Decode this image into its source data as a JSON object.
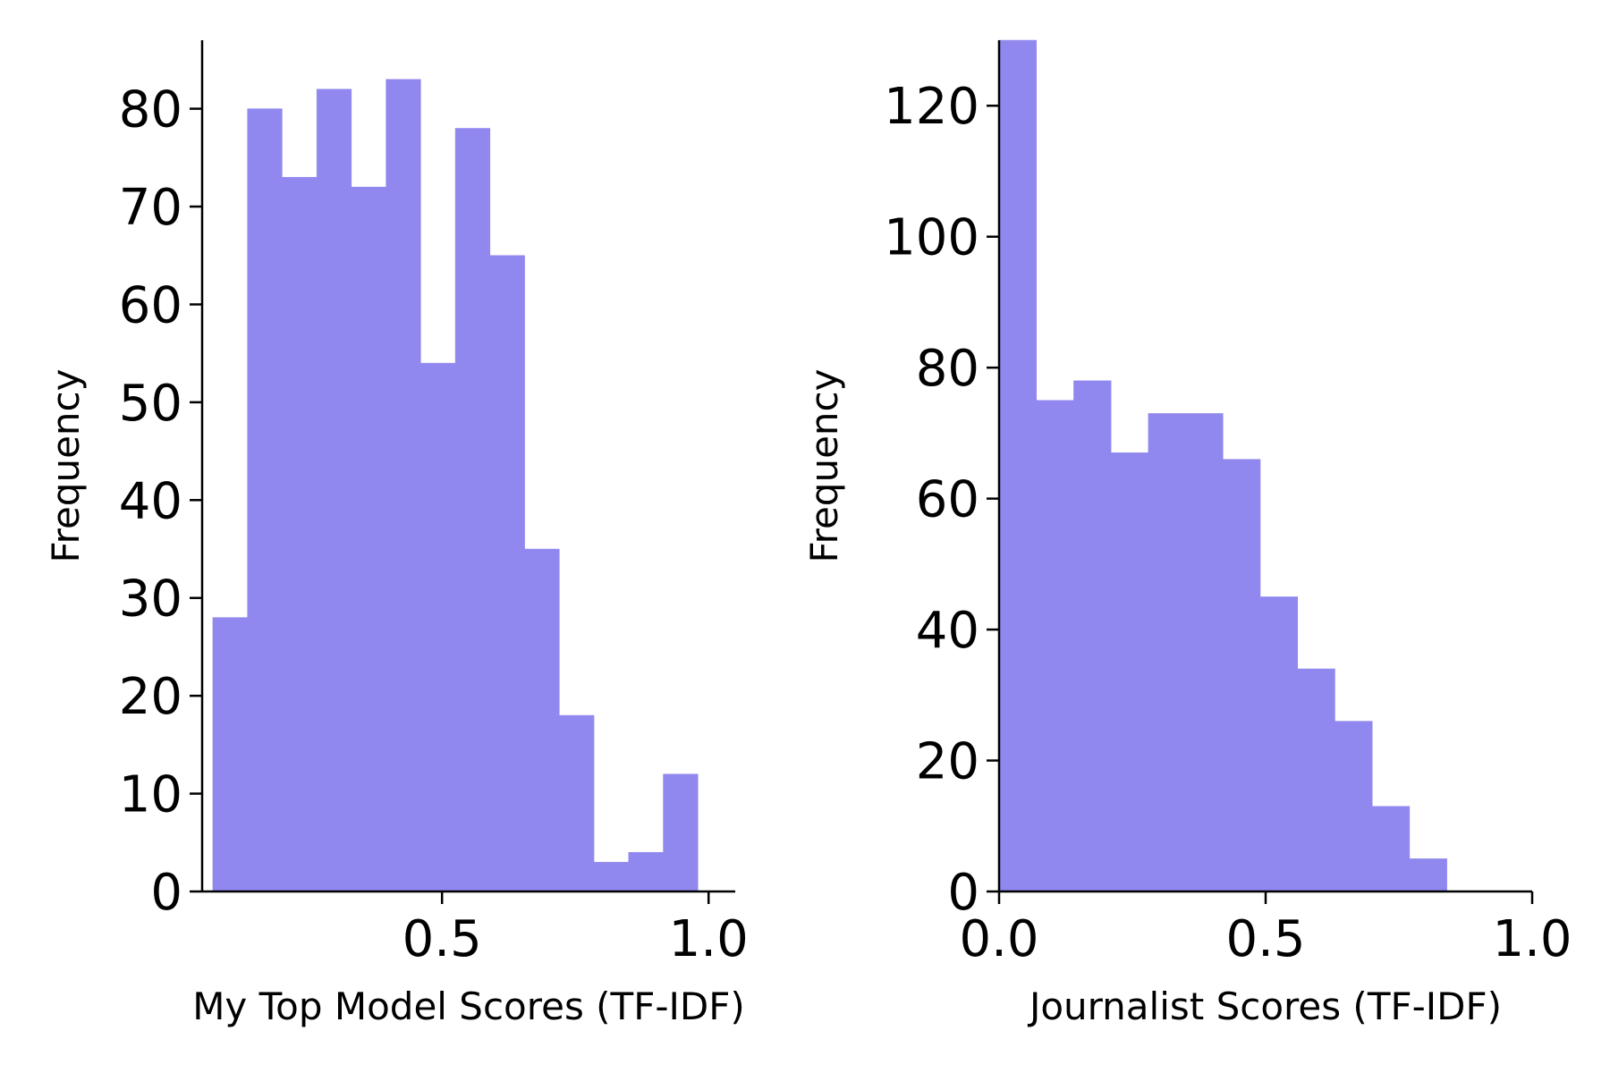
{
  "chart_data": [
    {
      "type": "bar",
      "histogram": true,
      "xlabel": "My Top Model Scores (TF-IDF)",
      "ylabel": "Frequency",
      "xlim": [
        0.05,
        1.05
      ],
      "ylim": [
        0,
        87
      ],
      "xticks": [
        "0.5",
        "1.0"
      ],
      "xtick_values": [
        0.5,
        1.0
      ],
      "yticks": [
        "0",
        "10",
        "20",
        "30",
        "40",
        "50",
        "60",
        "70",
        "80"
      ],
      "ytick_values": [
        0,
        10,
        20,
        30,
        40,
        50,
        60,
        70,
        80
      ],
      "bin_edges": [
        0.07,
        0.135,
        0.2,
        0.265,
        0.33,
        0.395,
        0.46,
        0.525,
        0.59,
        0.655,
        0.72,
        0.785,
        0.85,
        0.915,
        0.98
      ],
      "values": [
        28,
        80,
        73,
        82,
        72,
        83,
        54,
        78,
        65,
        35,
        18,
        3,
        4,
        12
      ],
      "color": "#9088ee",
      "grid": false
    },
    {
      "type": "bar",
      "histogram": true,
      "xlabel": "Journalist Scores (TF-IDF)",
      "ylabel": "Frequency",
      "xlim": [
        0.0,
        1.0
      ],
      "ylim": [
        0,
        130
      ],
      "xticks": [
        "0.0",
        "0.5",
        "1.0"
      ],
      "xtick_values": [
        0.0,
        0.5,
        1.0
      ],
      "yticks": [
        "0",
        "20",
        "40",
        "60",
        "80",
        "100",
        "120"
      ],
      "ytick_values": [
        0,
        20,
        40,
        60,
        80,
        100,
        120
      ],
      "bin_edges": [
        0.0,
        0.07,
        0.14,
        0.21,
        0.28,
        0.35,
        0.42,
        0.49,
        0.56,
        0.63,
        0.7,
        0.77,
        0.84
      ],
      "values": [
        130,
        75,
        78,
        67,
        73,
        73,
        66,
        45,
        34,
        26,
        13,
        5
      ],
      "color": "#9088ee",
      "grid": false
    }
  ]
}
